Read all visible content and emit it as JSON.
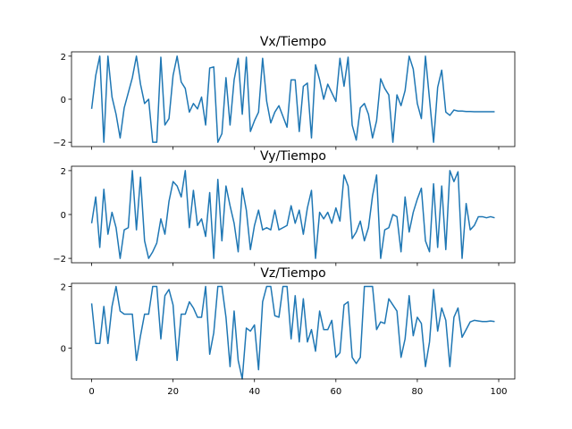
{
  "chart_data": [
    {
      "type": "line",
      "title": "Vx/Tiempo",
      "xlabel": "",
      "ylabel": "",
      "xlim": [
        -4.95,
        103.95
      ],
      "ylim": [
        -2.2,
        2.2
      ],
      "yticks": [
        -2,
        0,
        2
      ],
      "grid": false,
      "series": [
        {
          "color": "#1f77b4",
          "x": [
            0,
            1,
            2,
            3,
            4,
            5,
            6,
            7,
            8,
            9,
            10,
            11,
            12,
            13,
            14,
            15,
            16,
            17,
            18,
            19,
            20,
            21,
            22,
            23,
            24,
            25,
            26,
            27,
            28,
            29,
            30,
            31,
            32,
            33,
            34,
            35,
            36,
            37,
            38,
            39,
            40,
            41,
            42,
            43,
            44,
            45,
            46,
            47,
            48,
            49,
            50,
            51,
            52,
            53,
            54,
            55,
            56,
            57,
            58,
            59,
            60,
            61,
            62,
            63,
            64,
            65,
            66,
            67,
            68,
            69,
            70,
            71,
            72,
            73,
            74,
            75,
            76,
            77,
            78,
            79,
            80,
            81,
            82,
            83,
            84,
            85,
            86,
            87,
            88,
            89,
            90,
            91,
            92,
            93,
            94,
            95,
            96,
            97,
            98,
            99
          ],
          "y": [
            -0.45,
            1.1,
            2.0,
            -2.0,
            2.0,
            0.1,
            -0.7,
            -1.8,
            -0.4,
            0.3,
            1.0,
            2.0,
            0.7,
            -0.2,
            0.0,
            -2.0,
            -2.0,
            1.95,
            -1.2,
            -0.9,
            1.1,
            2.0,
            0.8,
            0.5,
            -0.6,
            -0.2,
            -0.45,
            0.1,
            -1.2,
            1.45,
            1.5,
            -2.0,
            -1.6,
            1.0,
            -1.2,
            0.9,
            1.9,
            -0.7,
            1.95,
            -1.5,
            -1.0,
            -0.6,
            1.9,
            -0.1,
            -1.1,
            -0.6,
            -0.3,
            -0.8,
            -1.3,
            0.9,
            0.9,
            -1.5,
            0.6,
            0.75,
            -1.8,
            1.6,
            0.9,
            0.0,
            0.7,
            0.3,
            -0.1,
            1.9,
            0.6,
            1.95,
            -1.2,
            -1.9,
            -0.4,
            -0.2,
            -0.7,
            -1.8,
            -1.0,
            0.95,
            0.5,
            0.2,
            -2.0,
            0.2,
            -0.3,
            0.4,
            2.0,
            1.4,
            -0.2,
            -0.9,
            2.0,
            0.0,
            -2.0,
            0.55,
            1.35,
            -0.6,
            -0.75,
            -0.5,
            -0.55,
            -0.55,
            -0.57,
            -0.57,
            -0.58,
            -0.58,
            -0.58,
            -0.58,
            -0.58,
            -0.58
          ]
        }
      ]
    },
    {
      "type": "line",
      "title": "Vy/Tiempo",
      "xlabel": "",
      "ylabel": "",
      "xlim": [
        -4.95,
        103.95
      ],
      "ylim": [
        -2.2,
        2.2
      ],
      "yticks": [
        -2,
        0,
        2
      ],
      "grid": false,
      "series": [
        {
          "color": "#1f77b4",
          "x": [
            0,
            1,
            2,
            3,
            4,
            5,
            6,
            7,
            8,
            9,
            10,
            11,
            12,
            13,
            14,
            15,
            16,
            17,
            18,
            19,
            20,
            21,
            22,
            23,
            24,
            25,
            26,
            27,
            28,
            29,
            30,
            31,
            32,
            33,
            34,
            35,
            36,
            37,
            38,
            39,
            40,
            41,
            42,
            43,
            44,
            45,
            46,
            47,
            48,
            49,
            50,
            51,
            52,
            53,
            54,
            55,
            56,
            57,
            58,
            59,
            60,
            61,
            62,
            63,
            64,
            65,
            66,
            67,
            68,
            69,
            70,
            71,
            72,
            73,
            74,
            75,
            76,
            77,
            78,
            79,
            80,
            81,
            82,
            83,
            84,
            85,
            86,
            87,
            88,
            89,
            90,
            91,
            92,
            93,
            94,
            95,
            96,
            97,
            98,
            99
          ],
          "y": [
            -0.4,
            0.8,
            -1.5,
            1.15,
            -0.9,
            0.1,
            -0.6,
            -2.0,
            -0.7,
            -0.6,
            2.0,
            -0.7,
            1.7,
            -1.2,
            -2.0,
            -1.7,
            -1.3,
            -0.2,
            -0.9,
            0.6,
            1.5,
            1.3,
            0.8,
            2.0,
            -0.6,
            1.1,
            -0.5,
            -0.2,
            -1.0,
            1.0,
            -2.0,
            1.6,
            -1.2,
            1.3,
            0.4,
            -0.4,
            -1.7,
            1.2,
            0.2,
            -1.6,
            -0.5,
            0.2,
            -0.7,
            -0.6,
            -0.7,
            0.2,
            -0.7,
            -0.6,
            -0.5,
            0.4,
            -0.4,
            0.2,
            -0.9,
            0.3,
            1.1,
            -2.0,
            0.1,
            -0.2,
            0.1,
            -0.4,
            0.3,
            -0.3,
            1.8,
            1.3,
            -1.1,
            -0.8,
            -0.3,
            -1.2,
            -0.6,
            0.85,
            1.8,
            -2.0,
            -0.7,
            -0.6,
            0.0,
            -0.1,
            -1.7,
            0.8,
            -0.8,
            0.1,
            0.7,
            1.2,
            -1.2,
            -1.7,
            1.4,
            -1.5,
            1.3,
            -1.6,
            2.0,
            1.5,
            1.95,
            -2.0,
            0.5,
            -0.7,
            -0.5,
            -0.1,
            -0.1,
            -0.15,
            -0.1,
            -0.15
          ]
        }
      ]
    },
    {
      "type": "line",
      "title": "Vz/Tiempo",
      "xlabel": "",
      "ylabel": "",
      "xlim": [
        -4.95,
        103.95
      ],
      "ylim": [
        -1.0,
        2.1
      ],
      "yticks": [
        0,
        2
      ],
      "xticks": [
        0,
        20,
        40,
        60,
        80,
        100
      ],
      "grid": false,
      "series": [
        {
          "color": "#1f77b4",
          "x": [
            0,
            1,
            2,
            3,
            4,
            5,
            6,
            7,
            8,
            9,
            10,
            11,
            12,
            13,
            14,
            15,
            16,
            17,
            18,
            19,
            20,
            21,
            22,
            23,
            24,
            25,
            26,
            27,
            28,
            29,
            30,
            31,
            32,
            33,
            34,
            35,
            36,
            37,
            38,
            39,
            40,
            41,
            42,
            43,
            44,
            45,
            46,
            47,
            48,
            49,
            50,
            51,
            52,
            53,
            54,
            55,
            56,
            57,
            58,
            59,
            60,
            61,
            62,
            63,
            64,
            65,
            66,
            67,
            68,
            69,
            70,
            71,
            72,
            73,
            74,
            75,
            76,
            77,
            78,
            79,
            80,
            81,
            82,
            83,
            84,
            85,
            86,
            87,
            88,
            89,
            90,
            91,
            92,
            93,
            94,
            95,
            96,
            97,
            98,
            99
          ],
          "y": [
            1.45,
            0.15,
            0.15,
            1.35,
            0.15,
            1.35,
            2.0,
            1.2,
            1.1,
            1.1,
            1.1,
            -0.4,
            0.4,
            1.1,
            1.1,
            2.0,
            2.0,
            0.3,
            1.7,
            1.9,
            1.4,
            -0.4,
            1.1,
            1.1,
            1.5,
            1.3,
            1.0,
            1.0,
            2.0,
            -0.2,
            0.5,
            2.0,
            2.0,
            1.0,
            -0.6,
            1.2,
            -0.4,
            -1.0,
            0.65,
            0.55,
            0.75,
            -0.7,
            1.5,
            2.0,
            2.0,
            1.05,
            1.0,
            2.0,
            2.0,
            0.3,
            1.7,
            0.2,
            1.6,
            0.2,
            0.6,
            -0.1,
            1.2,
            0.6,
            0.6,
            0.9,
            -0.3,
            -0.15,
            1.4,
            1.5,
            -0.3,
            -0.5,
            -0.3,
            2.0,
            2.0,
            2.0,
            0.6,
            0.85,
            0.8,
            1.6,
            1.4,
            1.2,
            -0.3,
            0.3,
            1.7,
            0.4,
            1.0,
            0.8,
            -0.6,
            0.2,
            1.9,
            0.55,
            1.3,
            0.9,
            -0.6,
            1.0,
            1.3,
            0.35,
            0.6,
            0.85,
            0.9,
            0.88,
            0.86,
            0.86,
            0.88,
            0.86
          ]
        }
      ]
    }
  ]
}
